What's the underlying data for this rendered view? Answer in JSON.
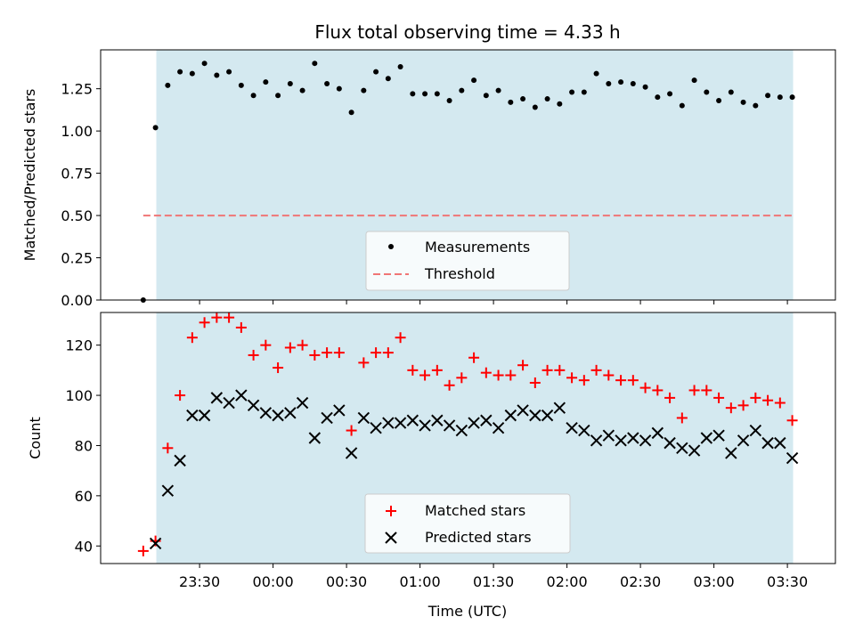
{
  "chart_data": [
    {
      "type": "scatter",
      "title": "Flux total observing time = 4.33 h",
      "xlabel": "",
      "ylabel": "Matched/Predicted stars",
      "ylim": [
        0.0,
        1.48
      ],
      "yticks": [
        "0.00",
        "0.25",
        "0.50",
        "0.75",
        "1.00",
        "1.25"
      ],
      "ytick_values": [
        0.0,
        0.25,
        0.5,
        0.75,
        1.0,
        1.25
      ],
      "observing_window_color": "#d4e9f0",
      "legend": {
        "position": "bottom-center",
        "measurements_label": "Measurements",
        "threshold_label": "Threshold"
      },
      "threshold": {
        "value": 0.5,
        "color": "#f07676"
      },
      "series": [
        {
          "name": "Measurements",
          "color": "#000000",
          "values": [
            0.0,
            1.02,
            1.27,
            1.35,
            1.34,
            1.4,
            1.33,
            1.35,
            1.27,
            1.21,
            1.29,
            1.21,
            1.28,
            1.24,
            1.4,
            1.28,
            1.25,
            1.11,
            1.24,
            1.35,
            1.31,
            1.38,
            1.22,
            1.22,
            1.22,
            1.18,
            1.24,
            1.3,
            1.21,
            1.24,
            1.17,
            1.19,
            1.14,
            1.19,
            1.16,
            1.23,
            1.23,
            1.34,
            1.28,
            1.29,
            1.28,
            1.26,
            1.2,
            1.22,
            1.15,
            1.3,
            1.23,
            1.18,
            1.23,
            1.17,
            1.15,
            1.21,
            1.2,
            1.2
          ]
        }
      ]
    },
    {
      "type": "scatter",
      "title": "",
      "xlabel": "Time (UTC)",
      "ylabel": "Count",
      "ylim": [
        33,
        133
      ],
      "yticks": [
        "40",
        "60",
        "80",
        "100",
        "120"
      ],
      "ytick_values": [
        40,
        60,
        80,
        100,
        120
      ],
      "xticks": [
        "23:30",
        "00:00",
        "00:30",
        "01:00",
        "01:30",
        "02:00",
        "02:30",
        "03:00",
        "03:30"
      ],
      "xtick_values": [
        0.3833,
        0.8833,
        1.3833,
        1.8833,
        2.3833,
        2.8833,
        3.3833,
        3.8833,
        4.3833
      ],
      "x_units": "hours since first sample",
      "xlim": [
        -0.29,
        4.71
      ],
      "observing_window": [
        0.0889,
        4.4222
      ],
      "observing_window_color": "#d4e9f0",
      "sample_interval_h": 0.08333,
      "legend": {
        "position": "bottom-center",
        "matched_label": "Matched stars",
        "predicted_label": "Predicted stars"
      },
      "series": [
        {
          "name": "Matched stars",
          "marker": "+",
          "color": "#ff0000",
          "values": [
            38,
            42,
            79,
            100,
            123,
            129,
            131,
            131,
            127,
            116,
            120,
            111,
            119,
            120,
            116,
            117,
            117,
            86,
            113,
            117,
            117,
            123,
            110,
            108,
            110,
            104,
            107,
            115,
            109,
            108,
            108,
            112,
            105,
            110,
            110,
            107,
            106,
            110,
            108,
            106,
            106,
            103,
            102,
            99,
            91,
            102,
            102,
            99,
            95,
            96,
            99,
            98,
            97,
            90
          ]
        },
        {
          "name": "Predicted stars",
          "marker": "x",
          "color": "#000000",
          "values": [
            null,
            41,
            62,
            74,
            92,
            92,
            99,
            97,
            100,
            96,
            93,
            92,
            93,
            97,
            83,
            91,
            94,
            77,
            91,
            87,
            89,
            89,
            90,
            88,
            90,
            88,
            86,
            89,
            90,
            87,
            92,
            94,
            92,
            92,
            95,
            87,
            86,
            82,
            84,
            82,
            83,
            82,
            85,
            81,
            79,
            78,
            83,
            84,
            77,
            82,
            86,
            81,
            81,
            75
          ]
        }
      ]
    }
  ]
}
